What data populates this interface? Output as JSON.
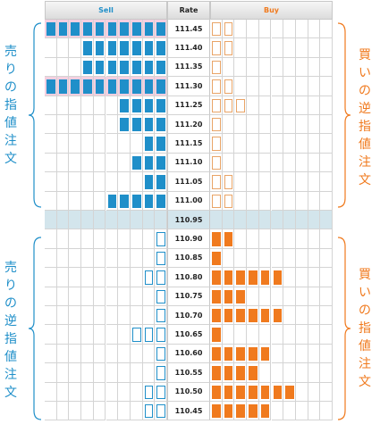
{
  "colors": {
    "sell": "#1f8fc9",
    "buy": "#f07a1e",
    "sell_outline": "#1f8fc9",
    "buy_outline": "#e9a467",
    "mid_row": "#d3e5ec"
  },
  "header": {
    "sell": "Sell",
    "rate": "Rate",
    "buy": "Buy"
  },
  "labels": {
    "left_top": "売りの指値注文",
    "right_top": "買いの逆指値注文",
    "left_bottom": "売りの逆指値注文",
    "right_bottom": "買いの指値注文"
  },
  "rows": [
    {
      "rate": "111.45",
      "sell": 10,
      "buy": 2,
      "sell_style": "filled",
      "buy_style": "outline",
      "highlight": true
    },
    {
      "rate": "111.40",
      "sell": 7,
      "buy": 2,
      "sell_style": "filled",
      "buy_style": "outline",
      "highlight": false
    },
    {
      "rate": "111.35",
      "sell": 7,
      "buy": 1,
      "sell_style": "filled",
      "buy_style": "outline",
      "highlight": false
    },
    {
      "rate": "111.30",
      "sell": 10,
      "buy": 2,
      "sell_style": "filled",
      "buy_style": "outline",
      "highlight": true
    },
    {
      "rate": "111.25",
      "sell": 4,
      "buy": 3,
      "sell_style": "filled",
      "buy_style": "outline",
      "highlight": false
    },
    {
      "rate": "111.20",
      "sell": 4,
      "buy": 1,
      "sell_style": "filled",
      "buy_style": "outline",
      "highlight": false
    },
    {
      "rate": "111.15",
      "sell": 2,
      "buy": 1,
      "sell_style": "filled",
      "buy_style": "outline",
      "highlight": false
    },
    {
      "rate": "111.10",
      "sell": 3,
      "buy": 1,
      "sell_style": "filled",
      "buy_style": "outline",
      "highlight": false
    },
    {
      "rate": "111.05",
      "sell": 2,
      "buy": 2,
      "sell_style": "filled",
      "buy_style": "outline",
      "highlight": false
    },
    {
      "rate": "111.00",
      "sell": 5,
      "buy": 2,
      "sell_style": "filled",
      "buy_style": "outline",
      "highlight": false
    },
    {
      "rate": "110.95",
      "sell": 0,
      "buy": 0,
      "sell_style": "none",
      "buy_style": "none",
      "highlight": false,
      "mid": true
    },
    {
      "rate": "110.90",
      "sell": 1,
      "buy": 2,
      "sell_style": "outline",
      "buy_style": "filled",
      "highlight": false
    },
    {
      "rate": "110.85",
      "sell": 1,
      "buy": 1,
      "sell_style": "outline",
      "buy_style": "filled",
      "highlight": false
    },
    {
      "rate": "110.80",
      "sell": 2,
      "buy": 6,
      "sell_style": "outline",
      "buy_style": "filled",
      "highlight": false
    },
    {
      "rate": "110.75",
      "sell": 1,
      "buy": 3,
      "sell_style": "outline",
      "buy_style": "filled",
      "highlight": false
    },
    {
      "rate": "110.70",
      "sell": 1,
      "buy": 6,
      "sell_style": "outline",
      "buy_style": "filled",
      "highlight": false
    },
    {
      "rate": "110.65",
      "sell": 3,
      "buy": 1,
      "sell_style": "outline",
      "buy_style": "filled",
      "highlight": false
    },
    {
      "rate": "110.60",
      "sell": 1,
      "buy": 5,
      "sell_style": "outline",
      "buy_style": "filled",
      "highlight": false
    },
    {
      "rate": "110.55",
      "sell": 1,
      "buy": 4,
      "sell_style": "outline",
      "buy_style": "filled",
      "highlight": false
    },
    {
      "rate": "110.50",
      "sell": 2,
      "buy": 7,
      "sell_style": "outline",
      "buy_style": "filled",
      "highlight": false
    },
    {
      "rate": "110.45",
      "sell": 2,
      "buy": 5,
      "sell_style": "outline",
      "buy_style": "filled",
      "highlight": false
    }
  ]
}
